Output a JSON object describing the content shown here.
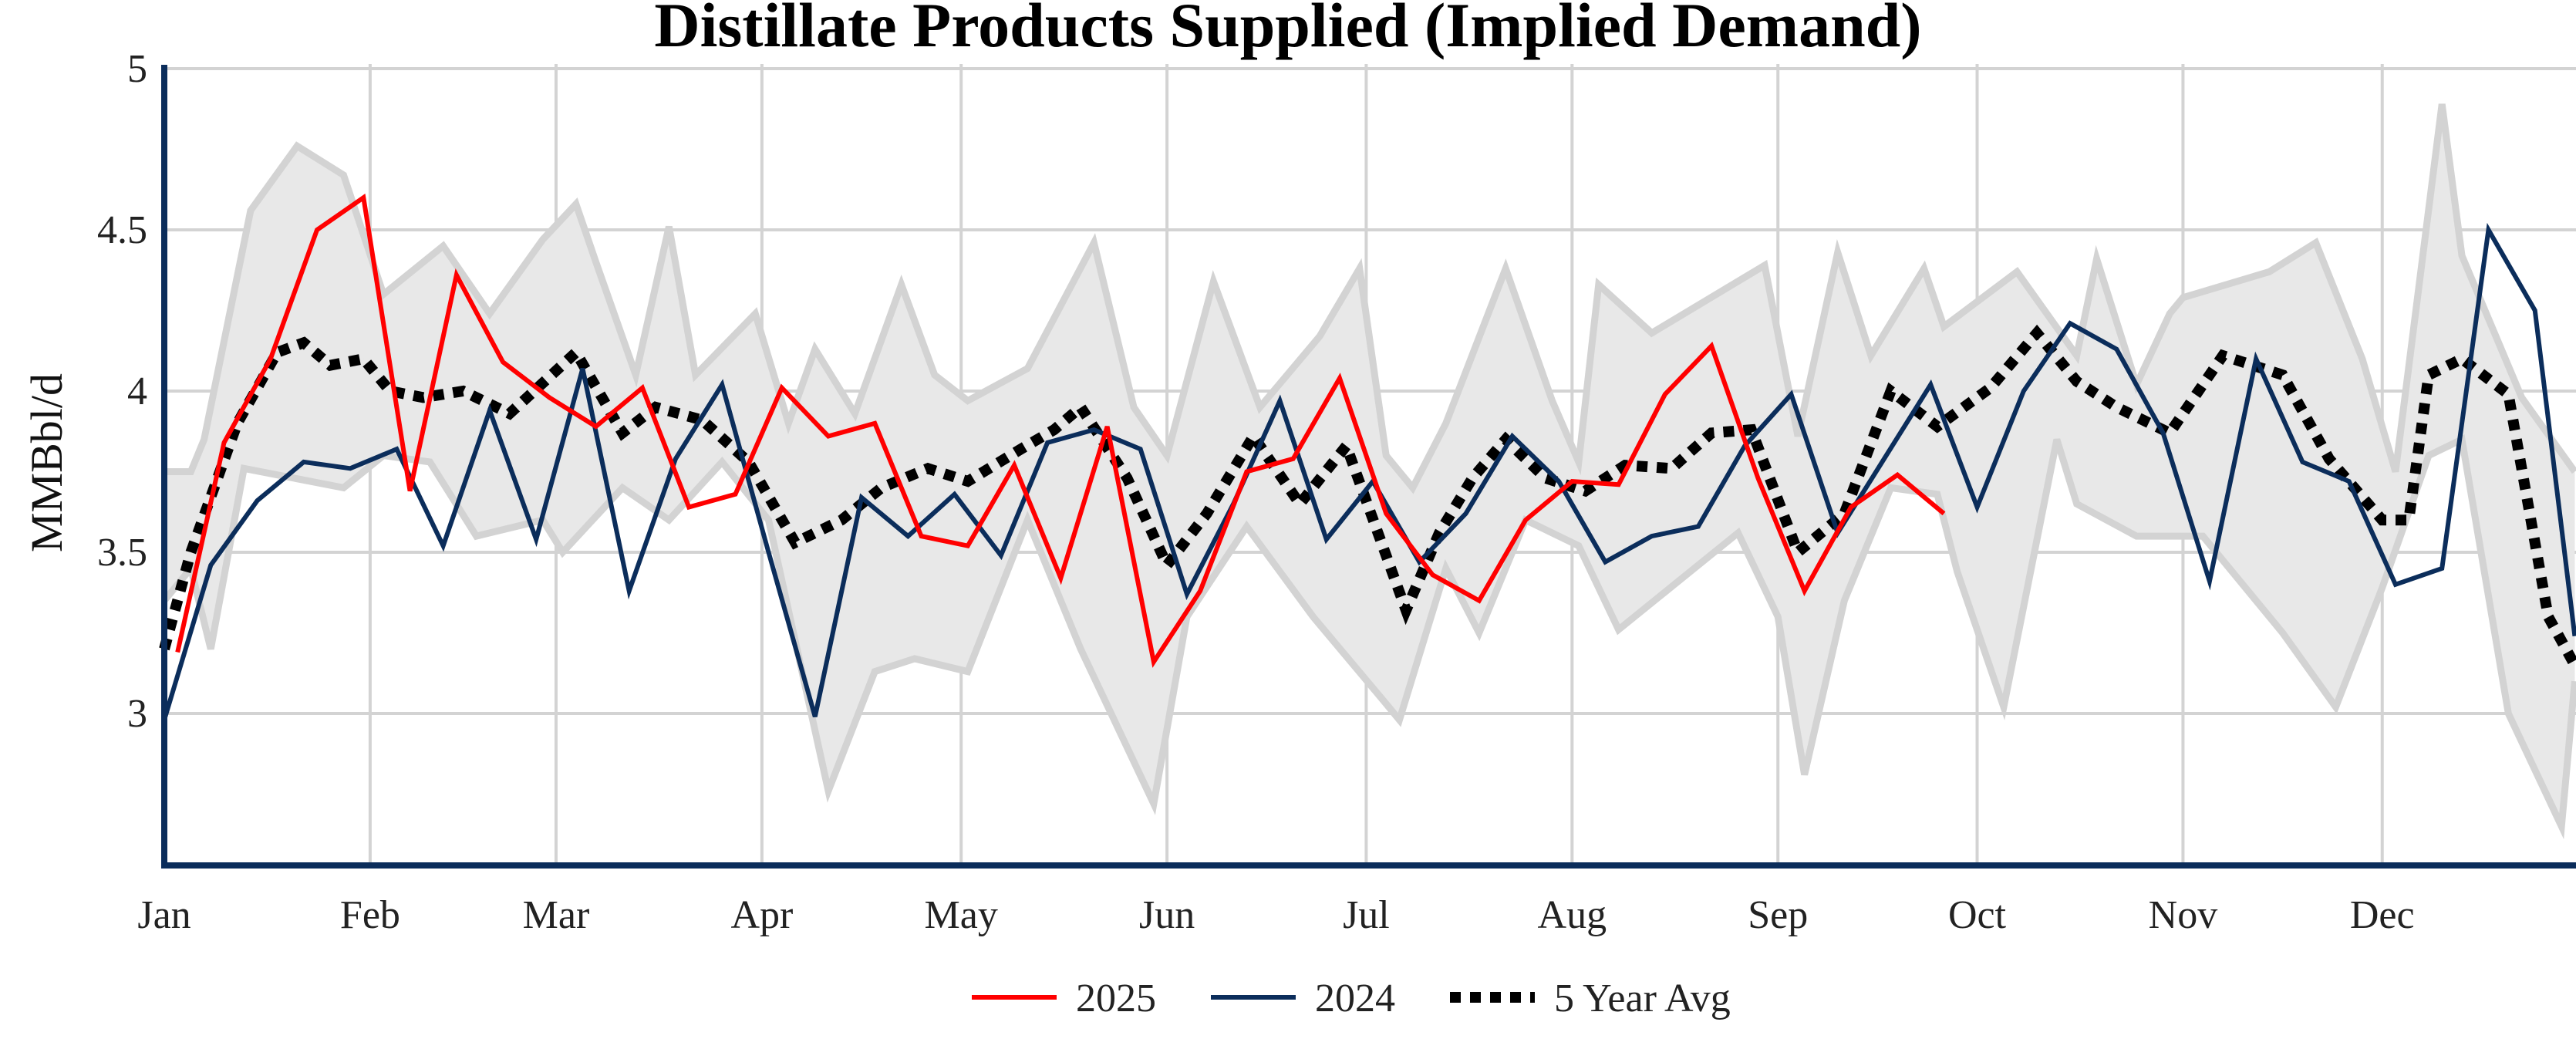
{
  "chart_data": {
    "type": "line",
    "title": "Distillate Products Supplied (Implied Demand)",
    "xlabel": "",
    "ylabel": "MMBbl/d",
    "ylim": [
      2.55,
      5
    ],
    "yticks": [
      "3",
      "3.5",
      "4",
      "4.5",
      "5"
    ],
    "xticks": [
      "Jan",
      "Feb",
      "Mar",
      "Apr",
      "May",
      "Jun",
      "Jul",
      "Aug",
      "Sep",
      "Oct",
      "Nov",
      "Dec"
    ],
    "grid": true,
    "legend_position": "bottom",
    "colors": {
      "2025": "#ff0000",
      "2024": "#0b2d5b",
      "avg": "#000000",
      "range": "#e8e8e8",
      "range_edge": "#d3d3d3",
      "axis": "#0b2d5b",
      "grid": "#d3d3d3"
    },
    "range_band": {
      "upper": [
        [
          "01-01",
          3.75
        ],
        [
          "01-05",
          3.75
        ],
        [
          "01-07",
          3.85
        ],
        [
          "01-14",
          4.56
        ],
        [
          "01-21",
          4.76
        ],
        [
          "01-28",
          4.67
        ],
        [
          "02-03",
          4.3
        ],
        [
          "02-12",
          4.45
        ],
        [
          "02-19",
          4.24
        ],
        [
          "02-27",
          4.47
        ],
        [
          "03-04",
          4.58
        ],
        [
          "03-07",
          4.4
        ],
        [
          "03-13",
          4.05
        ],
        [
          "03-18",
          4.51
        ],
        [
          "03-22",
          4.05
        ],
        [
          "03-31",
          4.24
        ],
        [
          "04-05",
          3.9
        ],
        [
          "04-09",
          4.13
        ],
        [
          "04-15",
          3.93
        ],
        [
          "04-22",
          4.33
        ],
        [
          "04-27",
          4.05
        ],
        [
          "05-02",
          3.97
        ],
        [
          "05-11",
          4.07
        ],
        [
          "05-21",
          4.46
        ],
        [
          "05-27",
          3.95
        ],
        [
          "06-01",
          3.8
        ],
        [
          "06-08",
          4.34
        ],
        [
          "06-15",
          3.95
        ],
        [
          "06-24",
          4.17
        ],
        [
          "06-30",
          4.38
        ],
        [
          "07-04",
          3.8
        ],
        [
          "07-08",
          3.7
        ],
        [
          "07-13",
          3.9
        ],
        [
          "07-22",
          4.38
        ],
        [
          "07-29",
          3.97
        ],
        [
          "08-02",
          3.78
        ],
        [
          "08-05",
          4.33
        ],
        [
          "08-13",
          4.18
        ],
        [
          "08-30",
          4.39
        ],
        [
          "09-04",
          3.86
        ],
        [
          "09-10",
          4.43
        ],
        [
          "09-15",
          4.11
        ],
        [
          "09-23",
          4.38
        ],
        [
          "09-26",
          4.2
        ],
        [
          "10-07",
          4.37
        ],
        [
          "10-16",
          4.11
        ],
        [
          "10-19",
          4.41
        ],
        [
          "10-25",
          4.02
        ],
        [
          "10-30",
          4.24
        ],
        [
          "11-01",
          4.29
        ],
        [
          "11-14",
          4.37
        ],
        [
          "11-21",
          4.46
        ],
        [
          "11-28",
          4.1
        ],
        [
          "12-03",
          3.75
        ],
        [
          "12-10",
          4.89
        ],
        [
          "12-13",
          4.42
        ],
        [
          "12-22",
          3.98
        ],
        [
          "12-30",
          3.75
        ]
      ],
      "lower": [
        [
          "01-01",
          3.35
        ],
        [
          "01-05",
          3.45
        ],
        [
          "01-08",
          3.2
        ],
        [
          "01-13",
          3.76
        ],
        [
          "01-28",
          3.7
        ],
        [
          "02-03",
          3.8
        ],
        [
          "02-10",
          3.78
        ],
        [
          "02-17",
          3.55
        ],
        [
          "02-27",
          3.6
        ],
        [
          "03-02",
          3.5
        ],
        [
          "03-11",
          3.7
        ],
        [
          "03-18",
          3.6
        ],
        [
          "03-26",
          3.78
        ],
        [
          "04-02",
          3.6
        ],
        [
          "04-11",
          2.76
        ],
        [
          "04-18",
          3.13
        ],
        [
          "04-24",
          3.17
        ],
        [
          "05-02",
          3.13
        ],
        [
          "05-11",
          3.6
        ],
        [
          "05-19",
          3.2
        ],
        [
          "05-30",
          2.72
        ],
        [
          "06-04",
          3.3
        ],
        [
          "06-13",
          3.58
        ],
        [
          "06-23",
          3.3
        ],
        [
          "07-04",
          3.03
        ],
        [
          "07-06",
          2.98
        ],
        [
          "07-13",
          3.45
        ],
        [
          "07-18",
          3.25
        ],
        [
          "07-25",
          3.6
        ],
        [
          "08-02",
          3.52
        ],
        [
          "08-08",
          3.26
        ],
        [
          "08-26",
          3.56
        ],
        [
          "09-01",
          3.3
        ],
        [
          "09-05",
          2.81
        ],
        [
          "09-11",
          3.35
        ],
        [
          "09-18",
          3.7
        ],
        [
          "09-25",
          3.68
        ],
        [
          "09-28",
          3.44
        ],
        [
          "10-05",
          3.02
        ],
        [
          "10-13",
          3.85
        ],
        [
          "10-16",
          3.65
        ],
        [
          "10-25",
          3.55
        ],
        [
          "11-04",
          3.55
        ],
        [
          "11-16",
          3.25
        ],
        [
          "11-24",
          3.02
        ],
        [
          "12-01",
          3.39
        ],
        [
          "12-08",
          3.8
        ],
        [
          "12-13",
          3.85
        ],
        [
          "12-20",
          3.0
        ],
        [
          "12-28",
          2.65
        ],
        [
          "12-30",
          3.1
        ]
      ]
    },
    "series": [
      {
        "name": "2025",
        "points": [
          [
            "01-03",
            3.19
          ],
          [
            "01-10",
            3.84
          ],
          [
            "01-17",
            4.1
          ],
          [
            "01-24",
            4.5
          ],
          [
            "01-31",
            4.6
          ],
          [
            "02-07",
            3.69
          ],
          [
            "02-14",
            4.36
          ],
          [
            "02-21",
            4.09
          ],
          [
            "02-28",
            3.98
          ],
          [
            "03-07",
            3.89
          ],
          [
            "03-14",
            4.01
          ],
          [
            "03-21",
            3.64
          ],
          [
            "03-28",
            3.68
          ],
          [
            "04-04",
            4.01
          ],
          [
            "04-11",
            3.86
          ],
          [
            "04-18",
            3.9
          ],
          [
            "04-25",
            3.55
          ],
          [
            "05-02",
            3.52
          ],
          [
            "05-09",
            3.77
          ],
          [
            "05-16",
            3.42
          ],
          [
            "05-23",
            3.89
          ],
          [
            "05-30",
            3.16
          ],
          [
            "06-06",
            3.38
          ],
          [
            "06-13",
            3.75
          ],
          [
            "06-20",
            3.79
          ],
          [
            "06-27",
            4.04
          ],
          [
            "07-04",
            3.62
          ],
          [
            "07-11",
            3.43
          ],
          [
            "07-18",
            3.35
          ],
          [
            "07-25",
            3.6
          ],
          [
            "08-01",
            3.72
          ],
          [
            "08-08",
            3.71
          ],
          [
            "08-15",
            3.99
          ],
          [
            "08-22",
            4.14
          ],
          [
            "08-29",
            3.73
          ],
          [
            "09-05",
            3.38
          ],
          [
            "09-12",
            3.64
          ],
          [
            "09-19",
            3.74
          ],
          [
            "09-26",
            3.62
          ]
        ]
      },
      {
        "name": "2024",
        "points": [
          [
            "01-01",
            2.98
          ],
          [
            "01-08",
            3.46
          ],
          [
            "01-15",
            3.66
          ],
          [
            "01-22",
            3.78
          ],
          [
            "01-29",
            3.76
          ],
          [
            "02-05",
            3.82
          ],
          [
            "02-12",
            3.52
          ],
          [
            "02-19",
            3.94
          ],
          [
            "02-26",
            3.54
          ],
          [
            "03-05",
            4.07
          ],
          [
            "03-12",
            3.38
          ],
          [
            "03-19",
            3.79
          ],
          [
            "03-26",
            4.02
          ],
          [
            "04-02",
            3.5
          ],
          [
            "04-09",
            2.99
          ],
          [
            "04-16",
            3.67
          ],
          [
            "04-23",
            3.55
          ],
          [
            "04-30",
            3.68
          ],
          [
            "05-07",
            3.49
          ],
          [
            "05-14",
            3.84
          ],
          [
            "05-21",
            3.88
          ],
          [
            "05-28",
            3.82
          ],
          [
            "06-04",
            3.37
          ],
          [
            "06-11",
            3.65
          ],
          [
            "06-18",
            3.97
          ],
          [
            "06-25",
            3.54
          ],
          [
            "07-02",
            3.72
          ],
          [
            "07-09",
            3.47
          ],
          [
            "07-16",
            3.62
          ],
          [
            "07-23",
            3.86
          ],
          [
            "07-30",
            3.72
          ],
          [
            "08-06",
            3.47
          ],
          [
            "08-13",
            3.55
          ],
          [
            "08-20",
            3.58
          ],
          [
            "08-27",
            3.83
          ],
          [
            "09-03",
            3.99
          ],
          [
            "09-10",
            3.56
          ],
          [
            "09-17",
            3.79
          ],
          [
            "09-24",
            4.02
          ],
          [
            "10-01",
            3.64
          ],
          [
            "10-08",
            4.0
          ],
          [
            "10-15",
            4.21
          ],
          [
            "10-22",
            4.13
          ],
          [
            "10-29",
            3.87
          ],
          [
            "11-05",
            3.41
          ],
          [
            "11-12",
            4.1
          ],
          [
            "11-19",
            3.78
          ],
          [
            "11-26",
            3.72
          ],
          [
            "12-03",
            3.4
          ],
          [
            "12-10",
            3.45
          ],
          [
            "12-17",
            4.5
          ],
          [
            "12-24",
            4.25
          ],
          [
            "12-30",
            3.24
          ]
        ]
      },
      {
        "name": "5 Year Avg",
        "points": [
          [
            "01-01",
            3.2
          ],
          [
            "01-05",
            3.5
          ],
          [
            "01-12",
            3.9
          ],
          [
            "01-18",
            4.12
          ],
          [
            "01-22",
            4.15
          ],
          [
            "01-26",
            4.08
          ],
          [
            "01-31",
            4.1
          ],
          [
            "02-04",
            4.0
          ],
          [
            "02-09",
            3.98
          ],
          [
            "02-15",
            4.0
          ],
          [
            "02-22",
            3.93
          ],
          [
            "03-04",
            4.12
          ],
          [
            "03-11",
            3.87
          ],
          [
            "03-16",
            3.95
          ],
          [
            "03-23",
            3.91
          ],
          [
            "03-30",
            3.78
          ],
          [
            "04-06",
            3.53
          ],
          [
            "04-13",
            3.6
          ],
          [
            "04-19",
            3.7
          ],
          [
            "04-26",
            3.76
          ],
          [
            "05-02",
            3.72
          ],
          [
            "05-10",
            3.82
          ],
          [
            "05-15",
            3.88
          ],
          [
            "05-19",
            3.95
          ],
          [
            "05-26",
            3.73
          ],
          [
            "06-01",
            3.46
          ],
          [
            "06-07",
            3.62
          ],
          [
            "06-14",
            3.86
          ],
          [
            "06-21",
            3.65
          ],
          [
            "06-28",
            3.83
          ],
          [
            "07-07",
            3.32
          ],
          [
            "07-12",
            3.56
          ],
          [
            "07-17",
            3.73
          ],
          [
            "07-22",
            3.85
          ],
          [
            "07-28",
            3.73
          ],
          [
            "08-03",
            3.69
          ],
          [
            "08-09",
            3.77
          ],
          [
            "08-16",
            3.76
          ],
          [
            "08-22",
            3.87
          ],
          [
            "08-28",
            3.88
          ],
          [
            "09-04",
            3.5
          ],
          [
            "09-11",
            3.62
          ],
          [
            "09-18",
            4.0
          ],
          [
            "09-25",
            3.89
          ],
          [
            "10-03",
            4.01
          ],
          [
            "10-10",
            4.18
          ],
          [
            "10-16",
            4.03
          ],
          [
            "10-22",
            3.95
          ],
          [
            "10-30",
            3.87
          ],
          [
            "11-07",
            4.11
          ],
          [
            "11-16",
            4.05
          ],
          [
            "11-23",
            3.79
          ],
          [
            "12-01",
            3.6
          ],
          [
            "12-05",
            3.6
          ],
          [
            "12-08",
            4.05
          ],
          [
            "12-13",
            4.1
          ],
          [
            "12-20",
            3.99
          ],
          [
            "12-26",
            3.3
          ],
          [
            "12-30",
            3.15
          ]
        ]
      }
    ]
  }
}
